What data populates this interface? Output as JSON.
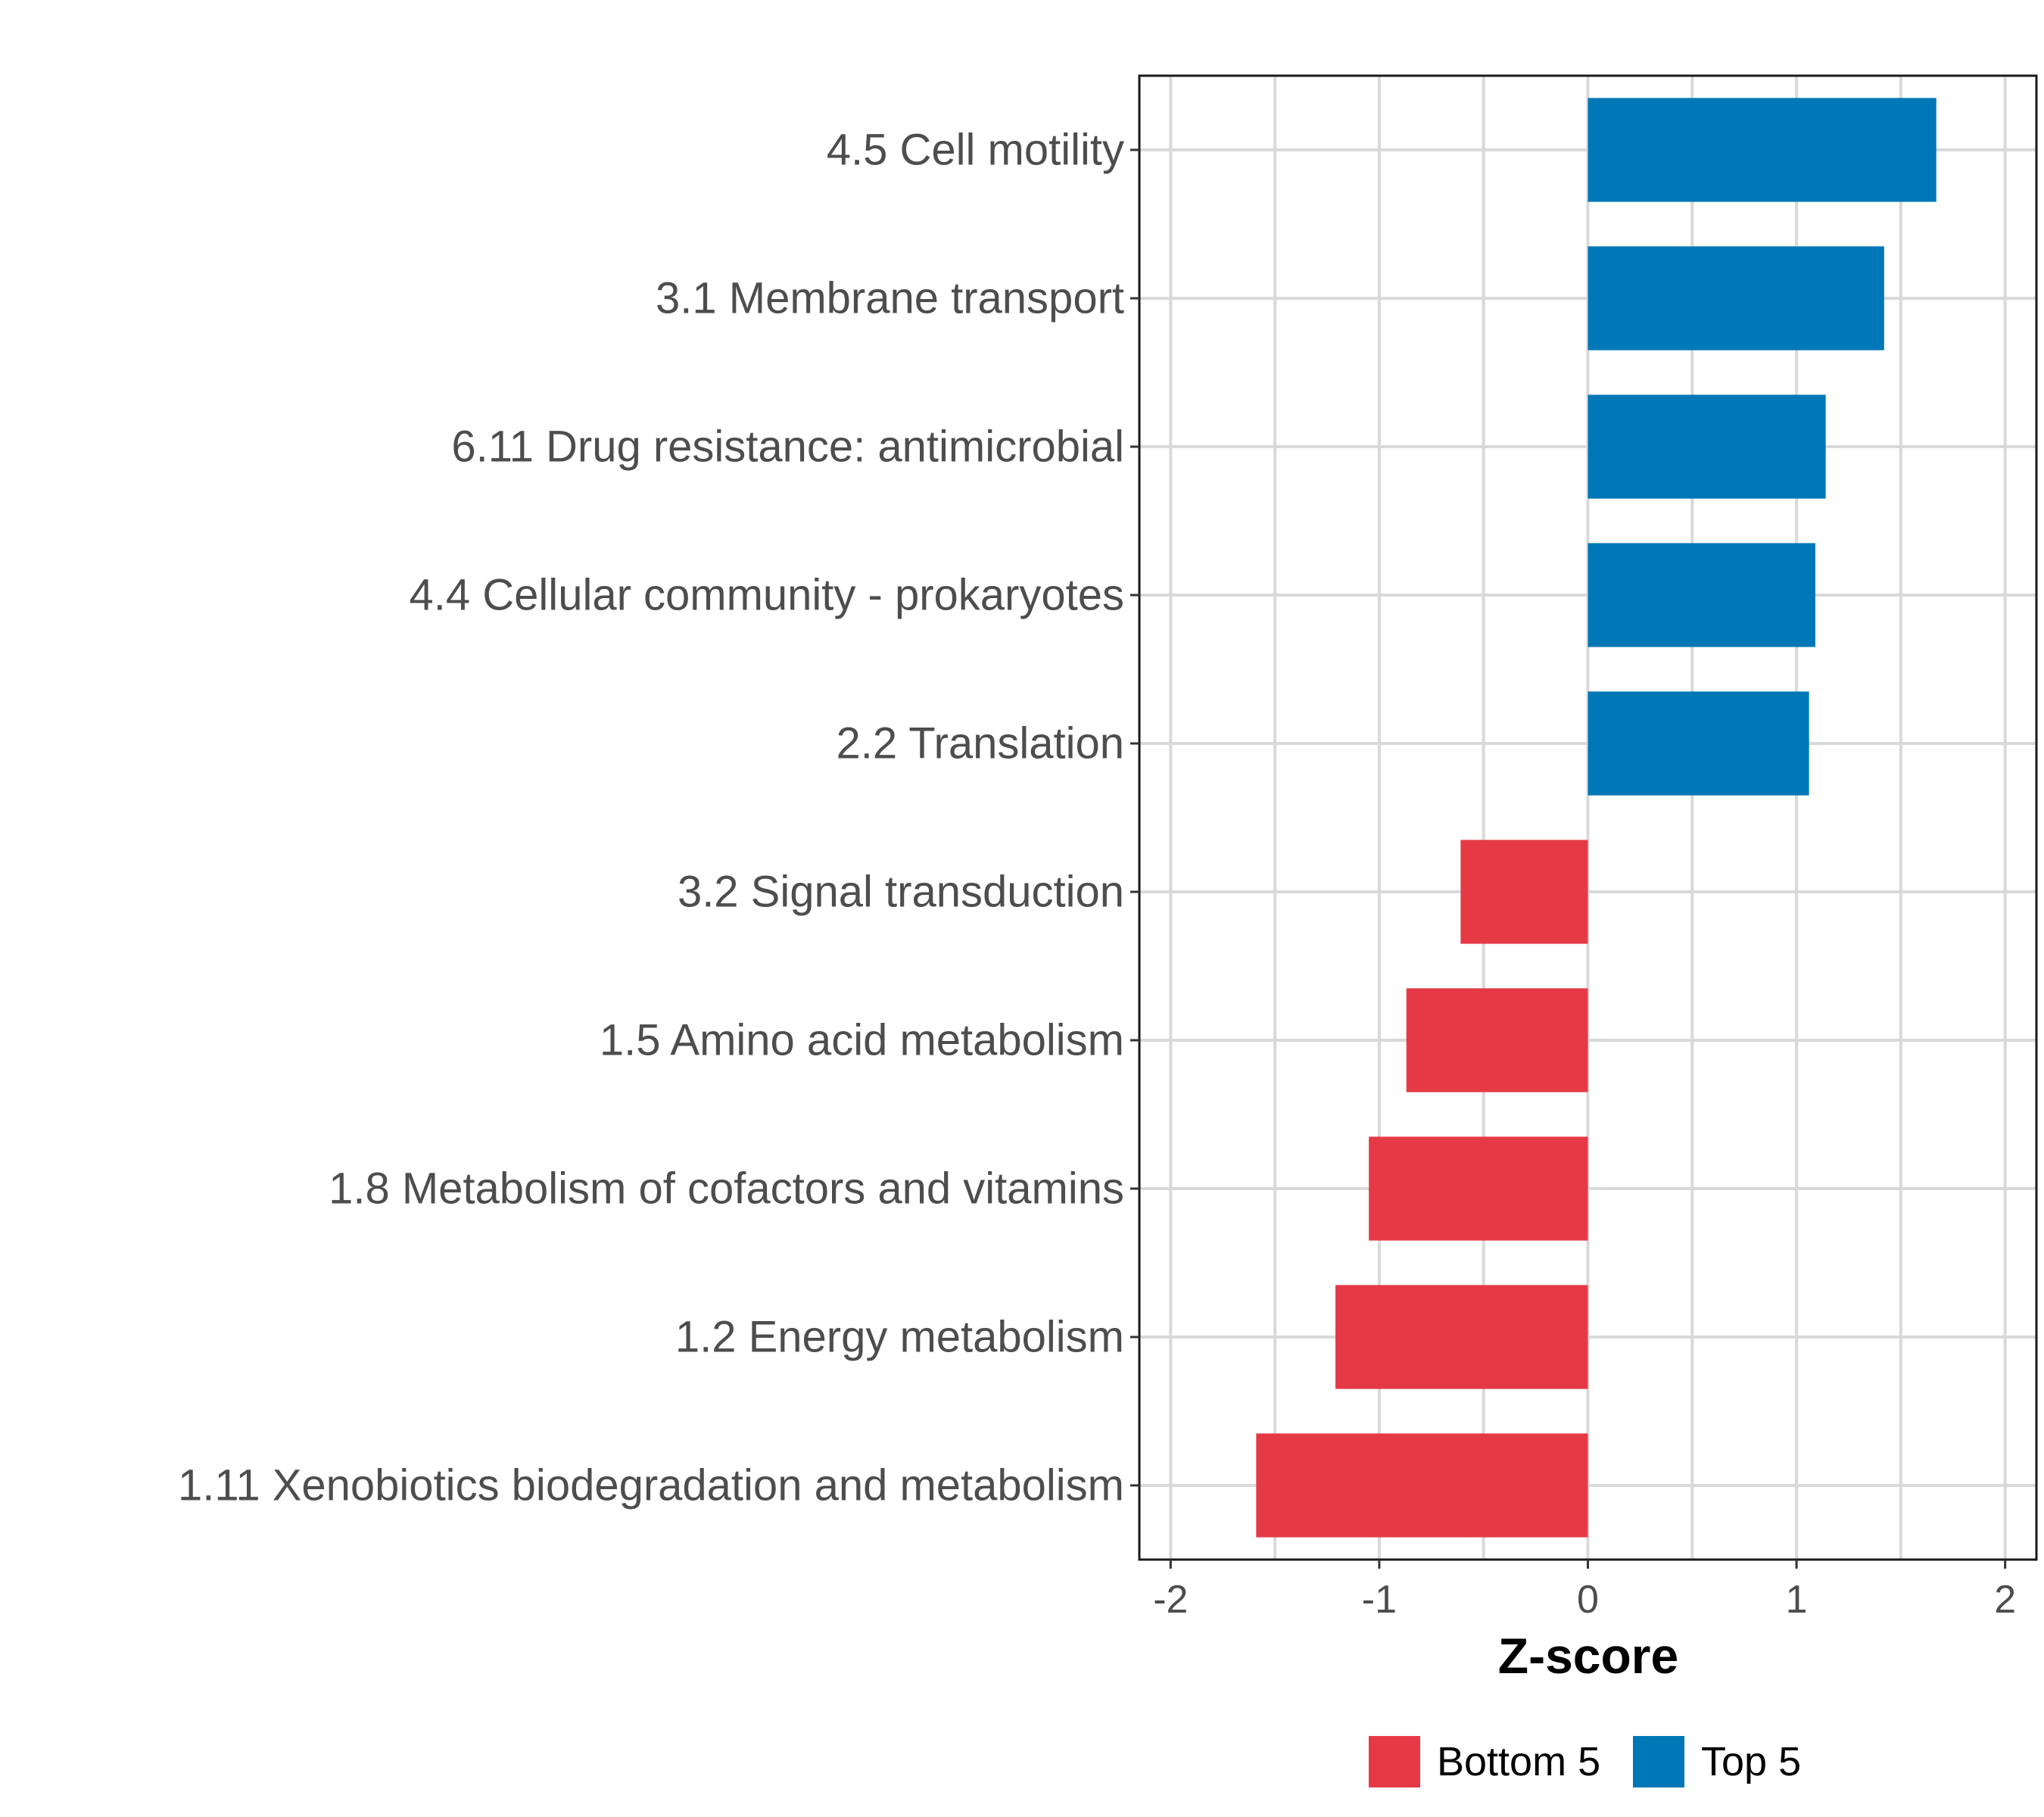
{
  "chart_data": {
    "type": "bar",
    "orientation": "horizontal",
    "categories": [
      "4.5 Cell motility",
      "3.1 Membrane transport",
      "6.11 Drug resistance: antimicrobial",
      "4.4 Cellular community - prokaryotes",
      "2.2 Translation",
      "3.2 Signal transduction",
      "1.5 Amino acid metabolism",
      "1.8 Metabolism of cofactors and vitamins",
      "1.2 Energy metabolism",
      "1.11 Xenobiotics biodegradation and metabolism"
    ],
    "values": [
      1.67,
      1.42,
      1.14,
      1.09,
      1.06,
      -0.61,
      -0.87,
      -1.05,
      -1.21,
      -1.59
    ],
    "groups": [
      "Top 5",
      "Top 5",
      "Top 5",
      "Top 5",
      "Top 5",
      "Bottom 5",
      "Bottom 5",
      "Bottom 5",
      "Bottom 5",
      "Bottom 5"
    ],
    "xlabel": "Z-score",
    "ylabel": "",
    "xlim": [
      -2.15,
      2.15
    ],
    "xticks": [
      -2,
      -1,
      0,
      1,
      2
    ],
    "xtick_labels": [
      "-2",
      "-1",
      "0",
      "1",
      "2"
    ],
    "grid": true,
    "legend": {
      "placement": "bottom",
      "entries": [
        {
          "label": "Bottom 5",
          "color": "#e63946"
        },
        {
          "label": "Top 5",
          "color": "#0077b6"
        }
      ]
    }
  }
}
